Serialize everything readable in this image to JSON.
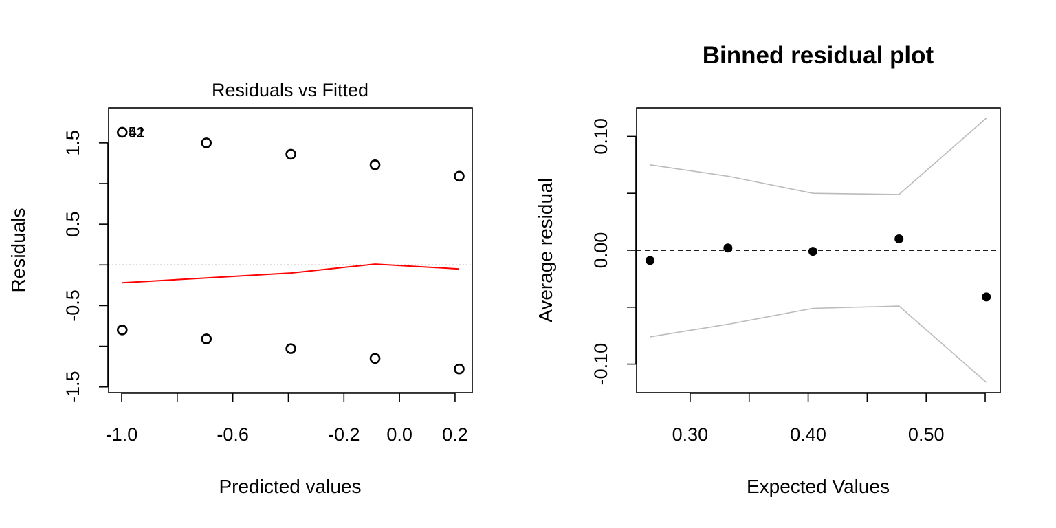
{
  "chart_data": [
    {
      "type": "scatter",
      "title": "Residuals vs Fitted",
      "xlabel": "Predicted values",
      "ylabel": "Residuals",
      "xlim": [
        -1.047,
        0.262
      ],
      "ylim": [
        -1.57,
        1.93
      ],
      "x_ticks": [
        -1.0,
        -0.8,
        -0.6,
        -0.4,
        -0.2,
        0.0,
        0.2
      ],
      "x_tick_labels": [
        {
          "value": -1.0,
          "label": "-1.0"
        },
        {
          "value": -0.6,
          "label": "-0.6"
        },
        {
          "value": -0.2,
          "label": "-0.2"
        },
        {
          "value": 0.0,
          "label": "0.0"
        },
        {
          "value": 0.2,
          "label": "0.2"
        }
      ],
      "y_ticks": [
        -1.5,
        -1.0,
        -0.5,
        0.0,
        0.5,
        1.0,
        1.5
      ],
      "y_tick_labels": [
        {
          "value": -1.5,
          "label": "-1.5"
        },
        {
          "value": -0.5,
          "label": "-0.5"
        },
        {
          "value": 0.5,
          "label": "0.5"
        },
        {
          "value": 1.5,
          "label": "1.5"
        }
      ],
      "points": [
        {
          "x": -0.998,
          "y": 1.63
        },
        {
          "x": -0.695,
          "y": 1.5
        },
        {
          "x": -0.391,
          "y": 1.36
        },
        {
          "x": -0.088,
          "y": 1.23
        },
        {
          "x": 0.215,
          "y": 1.09
        },
        {
          "x": -0.998,
          "y": -0.8
        },
        {
          "x": -0.695,
          "y": -0.91
        },
        {
          "x": -0.391,
          "y": -1.03
        },
        {
          "x": -0.088,
          "y": -1.15
        },
        {
          "x": 0.215,
          "y": -1.28
        }
      ],
      "point_labels": [
        {
          "x": -0.998,
          "y": 1.63,
          "text": "52"
        },
        {
          "x": -0.998,
          "y": 1.63,
          "text": "41"
        }
      ],
      "smooth_line": {
        "color": "#ff0000",
        "x": [
          -0.998,
          -0.695,
          -0.391,
          -0.088,
          0.215
        ],
        "y": [
          -0.22,
          -0.16,
          -0.1,
          0.01,
          -0.05
        ]
      },
      "reference_line": {
        "y": 0,
        "color": "#bbbbbb",
        "style": "dotted"
      }
    },
    {
      "type": "scatter",
      "title": "Binned residual plot",
      "xlabel": "Expected Values",
      "ylabel": "Average residual",
      "xlim": [
        0.2546,
        0.5628
      ],
      "ylim": [
        -0.125,
        0.125
      ],
      "x_ticks": [
        0.3,
        0.35,
        0.4,
        0.45,
        0.5,
        0.55
      ],
      "x_tick_labels": [
        {
          "value": 0.3,
          "label": "0.30"
        },
        {
          "value": 0.4,
          "label": "0.40"
        },
        {
          "value": 0.5,
          "label": "0.50"
        }
      ],
      "y_ticks": [
        -0.1,
        -0.05,
        0.0,
        0.05,
        0.1
      ],
      "y_tick_labels": [
        {
          "value": -0.1,
          "label": "-0.10"
        },
        {
          "value": 0.0,
          "label": "0.00"
        },
        {
          "value": 0.1,
          "label": "0.10"
        }
      ],
      "points": [
        {
          "x": 0.266,
          "y": -0.009
        },
        {
          "x": 0.332,
          "y": 0.002
        },
        {
          "x": 0.404,
          "y": -0.001
        },
        {
          "x": 0.477,
          "y": 0.01
        },
        {
          "x": 0.551,
          "y": -0.041
        }
      ],
      "upper_bound": {
        "color": "#bbbbbb",
        "x": [
          0.266,
          0.332,
          0.404,
          0.477,
          0.551
        ],
        "y": [
          0.075,
          0.065,
          0.05,
          0.049,
          0.116
        ]
      },
      "lower_bound": {
        "color": "#bbbbbb",
        "x": [
          0.266,
          0.332,
          0.404,
          0.477,
          0.551
        ],
        "y": [
          -0.076,
          -0.065,
          -0.051,
          -0.049,
          -0.116
        ]
      },
      "reference_line": {
        "y": 0,
        "color": "#000000",
        "style": "dashed"
      }
    }
  ]
}
